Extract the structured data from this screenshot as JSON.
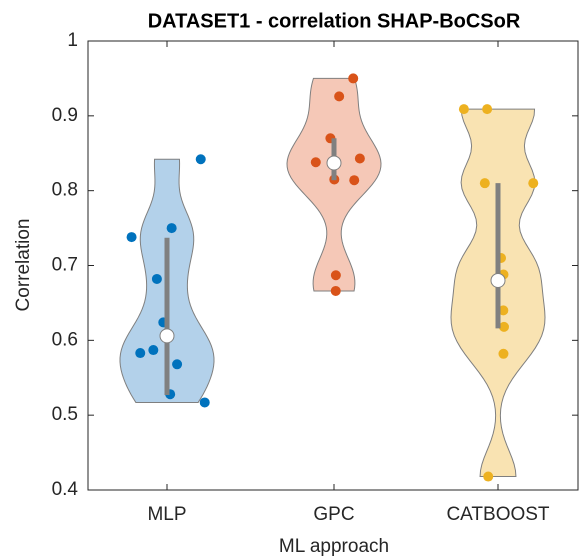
{
  "chart_data": {
    "type": "violin",
    "title": "DATASET1 - correlation SHAP-BoCSoR",
    "x_label": "ML approach",
    "y_label": "Correlation",
    "categories": [
      "MLP",
      "GPC",
      "CATBOOST"
    ],
    "ylim": [
      0.4,
      1
    ],
    "yticks": [
      0.4,
      0.5,
      0.6,
      0.7,
      0.8,
      0.9,
      1
    ],
    "series": [
      {
        "color": "#0072bd",
        "fill": "#b3d1ea",
        "values": [
          0.842,
          0.738,
          0.75,
          0.682,
          0.624,
          0.568,
          0.583,
          0.587,
          0.528,
          0.517
        ],
        "q1": 0.527,
        "median": 0.606,
        "q3": 0.737
      },
      {
        "color": "#d95319",
        "fill": "#f5c8b7",
        "values": [
          0.95,
          0.926,
          0.87,
          0.838,
          0.843,
          0.814,
          0.815,
          0.687,
          0.666
        ],
        "q1": 0.814,
        "median": 0.837,
        "q3": 0.87
      },
      {
        "color": "#edb120",
        "fill": "#f9e3b2",
        "values": [
          0.909,
          0.909,
          0.81,
          0.81,
          0.71,
          0.688,
          0.64,
          0.618,
          0.582,
          0.418
        ],
        "q1": 0.616,
        "median": 0.68,
        "q3": 0.81
      }
    ]
  }
}
